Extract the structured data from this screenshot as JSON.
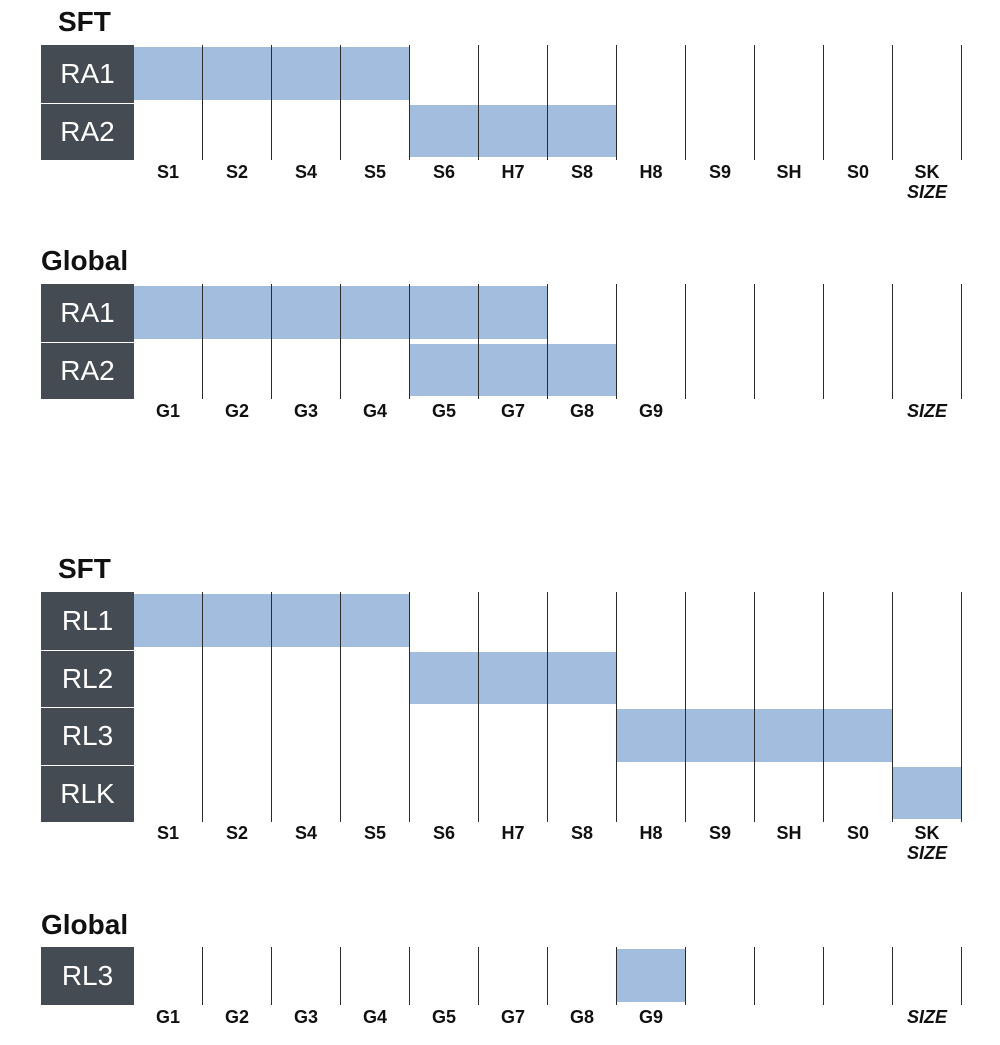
{
  "colors": {
    "label_background": "#454b52",
    "bar_fill": "#a2bddd",
    "grid_line": "#2b2b2b",
    "text": "#111111"
  },
  "chart_data": [
    {
      "type": "gantt",
      "title": "SFT",
      "categories": [
        "S1",
        "S2",
        "S4",
        "S5",
        "S6",
        "H7",
        "S8",
        "H8",
        "S9",
        "SH",
        "S0",
        "SK"
      ],
      "axis_label": "SIZE",
      "rows": [
        {
          "label": "RA1",
          "from": "S1",
          "to": "S5"
        },
        {
          "label": "RA2",
          "from": "S6",
          "to": "S8"
        }
      ]
    },
    {
      "type": "gantt",
      "title": "Global",
      "categories": [
        "G1",
        "G2",
        "G3",
        "G4",
        "G5",
        "G7",
        "G8",
        "G9",
        "",
        "",
        ""
      ],
      "axis_label": "SIZE",
      "rows": [
        {
          "label": "RA1",
          "from": "G1",
          "to": "G7"
        },
        {
          "label": "RA2",
          "from": "G5",
          "to": "G8"
        }
      ]
    },
    {
      "type": "gantt",
      "title": "SFT",
      "categories": [
        "S1",
        "S2",
        "S4",
        "S5",
        "S6",
        "H7",
        "S8",
        "H8",
        "S9",
        "SH",
        "S0",
        "SK"
      ],
      "axis_label": "SIZE",
      "rows": [
        {
          "label": "RL1",
          "from": "S1",
          "to": "S5"
        },
        {
          "label": "RL2",
          "from": "S6",
          "to": "S8"
        },
        {
          "label": "RL3",
          "from": "H8",
          "to": "S0"
        },
        {
          "label": "RLK",
          "from": "SK",
          "to": "SK"
        }
      ]
    },
    {
      "type": "gantt",
      "title": "Global",
      "categories": [
        "G1",
        "G2",
        "G3",
        "G4",
        "G5",
        "G7",
        "G8",
        "G9",
        "",
        "",
        ""
      ],
      "axis_label": "SIZE",
      "rows": [
        {
          "label": "RL3",
          "from": "G9",
          "to": "G9"
        }
      ]
    }
  ]
}
